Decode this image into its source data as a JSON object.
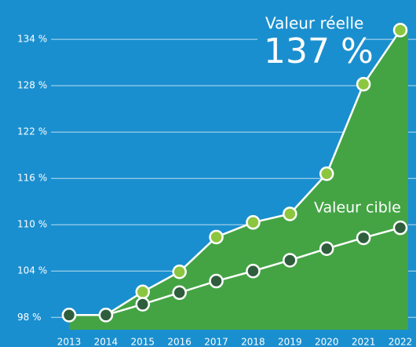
{
  "chart_data": {
    "type": "line",
    "categories": [
      "2013",
      "2014",
      "2015",
      "2016",
      "2017",
      "2018",
      "2019",
      "2020",
      "2021",
      "2022"
    ],
    "series": [
      {
        "name": "Valeur réelle",
        "color": "#8cc63f",
        "values": [
          98.3,
          98.3,
          101.3,
          103.9,
          108.4,
          110.3,
          111.4,
          116.6,
          128.2,
          135.2
        ]
      },
      {
        "name": "Valeur cible",
        "color": "#2e5e3c",
        "values": [
          98.3,
          98.3,
          99.7,
          101.2,
          102.7,
          104,
          105.4,
          106.9,
          108.3,
          109.6
        ]
      }
    ],
    "annotation": "137 %",
    "area_color": "#44a444",
    "ylim": [
      96.4,
      139.1
    ],
    "yticks": [
      {
        "value": 98,
        "label": "98 %"
      },
      {
        "value": 104,
        "label": "104 %"
      },
      {
        "value": 110,
        "label": "110 %"
      },
      {
        "value": 116,
        "label": "116 %"
      },
      {
        "value": 122,
        "label": "122 %"
      },
      {
        "value": 128,
        "label": "128 %"
      },
      {
        "value": 134,
        "label": "134 %"
      }
    ],
    "grid": true
  }
}
